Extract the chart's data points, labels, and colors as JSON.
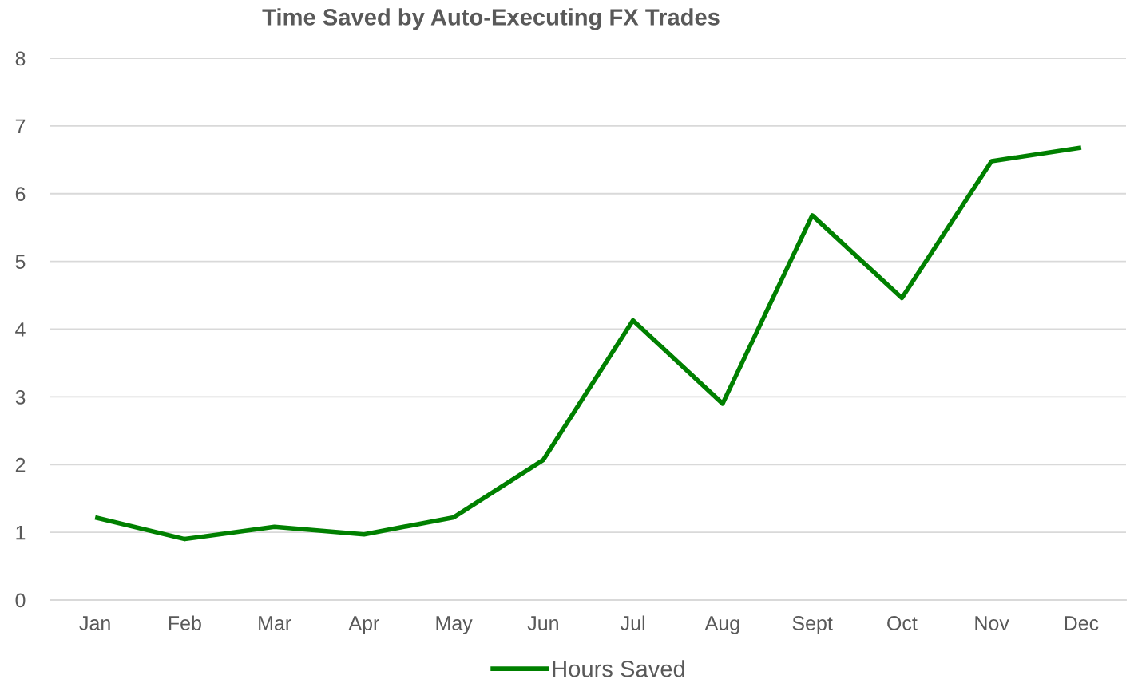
{
  "chart_data": {
    "type": "line",
    "title": "Time Saved by Auto-Executing FX Trades",
    "categories": [
      "Jan",
      "Feb",
      "Mar",
      "Apr",
      "May",
      "Jun",
      "Jul",
      "Aug",
      "Sept",
      "Oct",
      "Nov",
      "Dec"
    ],
    "series": [
      {
        "name": "Hours Saved",
        "color": "#008000",
        "values": [
          1.22,
          0.9,
          1.08,
          0.97,
          1.22,
          2.07,
          4.13,
          2.9,
          5.68,
          4.46,
          6.48,
          6.68
        ]
      }
    ],
    "ylim": [
      0,
      8
    ],
    "yticks": [
      0,
      1,
      2,
      3,
      4,
      5,
      6,
      7,
      8
    ],
    "grid": "y",
    "legend": "bottom",
    "marker": "none",
    "line_style": "solid"
  }
}
